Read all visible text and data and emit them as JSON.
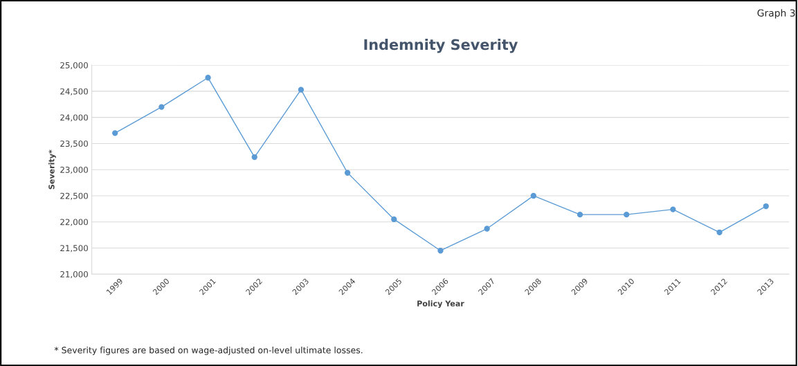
{
  "chart_data": {
    "type": "line",
    "title": "Indemnity Severity",
    "xlabel": "Policy Year",
    "ylabel": "Severity*",
    "categories": [
      "1999",
      "2000",
      "2001",
      "2002",
      "2003",
      "2004",
      "2005",
      "2006",
      "2007",
      "2008",
      "2009",
      "2010",
      "2011",
      "2012",
      "2013"
    ],
    "series": [
      {
        "color": "#5b9bd5",
        "values": [
          23700,
          24200,
          24760,
          23240,
          24530,
          22940,
          22050,
          21450,
          21870,
          22500,
          22140,
          22140,
          22240,
          21800,
          22300
        ]
      }
    ],
    "ylim": [
      21000,
      25000
    ],
    "yticks": [
      {
        "value": 21000,
        "label": "21,000"
      },
      {
        "value": 21500,
        "label": "21,500"
      },
      {
        "value": 22000,
        "label": "22,000"
      },
      {
        "value": 22500,
        "label": "22,500"
      },
      {
        "value": 23000,
        "label": "23,000"
      },
      {
        "value": 23500,
        "label": "23,500"
      },
      {
        "value": 24000,
        "label": "24,000"
      },
      {
        "value": 24500,
        "label": "24,500"
      },
      {
        "value": 25000,
        "label": "25,000"
      }
    ],
    "grid": "y",
    "marker": "circle",
    "line_style": "solid",
    "legend": false,
    "annotations": [
      "Graph 3",
      "* Severity figures are based on wage-adjusted on-level ultimate losses."
    ]
  }
}
